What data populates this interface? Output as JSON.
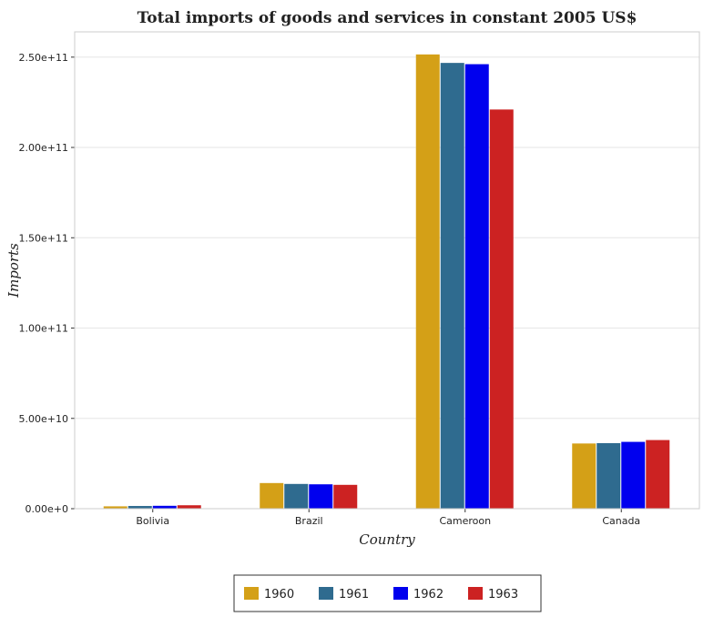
{
  "chart_data": {
    "type": "bar",
    "title": "Total imports of goods and services in constant 2005 US$",
    "xlabel": "Country",
    "ylabel": "Imports",
    "categories": [
      "Bolivia",
      "Brazil",
      "Cameroon",
      "Canada"
    ],
    "series": [
      {
        "name": "1960",
        "color": "#d4a017",
        "values": [
          1300000000.0,
          14200000000.0,
          251500000000.0,
          36100000000.0
        ]
      },
      {
        "name": "1961",
        "color": "#2f6b8f",
        "values": [
          1500000000.0,
          13700000000.0,
          246800000000.0,
          36300000000.0
        ]
      },
      {
        "name": "1962",
        "color": "#0000ee",
        "values": [
          1600000000.0,
          13500000000.0,
          246100000000.0,
          37000000000.0
        ]
      },
      {
        "name": "1963",
        "color": "#cc2222",
        "values": [
          1900000000.0,
          13200000000.0,
          221000000000.0,
          38000000000.0
        ]
      }
    ],
    "ylim": [
      0,
      264000000000.0
    ],
    "yticks": [
      0,
      50000000000.0,
      100000000000.0,
      150000000000.0,
      200000000000.0,
      250000000000.0
    ],
    "ytick_labels": [
      "0.00e+0",
      "5.00e+10",
      "1.00e+11",
      "1.50e+11",
      "2.00e+11",
      "2.50e+11"
    ],
    "grid": true,
    "legend_position": "bottom-center"
  }
}
